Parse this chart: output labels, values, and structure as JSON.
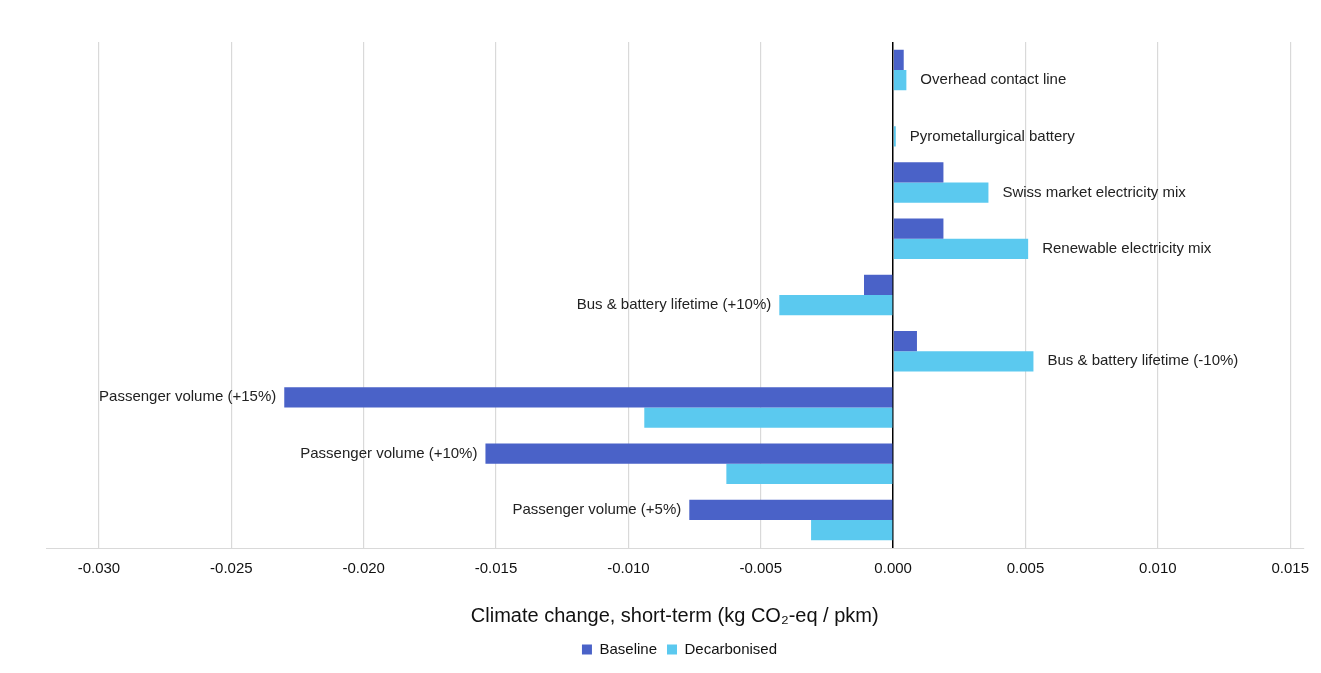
{
  "chart_data": {
    "type": "bar",
    "orientation": "horizontal",
    "xlabel": "Climate change, short-term (kg CO₂-eq / pkm)",
    "categories": [
      "Overhead contact line",
      "Pyrometallurgical battery",
      "Swiss market electricity mix",
      "Renewable electricity mix",
      "Bus & battery lifetime (+10%)",
      "Bus & battery lifetime (-10%)",
      "Passenger volume (+15%)",
      "Passenger volume (+10%)",
      "Passenger volume (+5%)"
    ],
    "series": [
      {
        "name": "Baseline",
        "color": "#4a62c8",
        "values": [
          0.0004,
          0,
          0.0019,
          0.0019,
          -0.0011,
          0.0009,
          -0.023,
          -0.0154,
          -0.0077
        ]
      },
      {
        "name": "Decarbonised",
        "color": "#5bc9ef",
        "values": [
          0.0005,
          0.0001,
          0.0036,
          0.0051,
          -0.0043,
          0.0053,
          -0.0094,
          -0.0063,
          -0.0031
        ]
      }
    ],
    "xlim": [
      -0.032,
      0.0155
    ],
    "xticks": [
      {
        "value": -0.03,
        "label": "-0.030"
      },
      {
        "value": -0.025,
        "label": "-0.025"
      },
      {
        "value": -0.02,
        "label": "-0.020"
      },
      {
        "value": -0.015,
        "label": "-0.015"
      },
      {
        "value": -0.01,
        "label": "-0.010"
      },
      {
        "value": -0.005,
        "label": "-0.005"
      },
      {
        "value": 0,
        "label": "0.000"
      },
      {
        "value": 0.005,
        "label": "0.005"
      },
      {
        "value": 0.01,
        "label": "0.010"
      },
      {
        "value": 0.015,
        "label": "0.015"
      }
    ],
    "grid": "x",
    "legend": "bottom"
  }
}
